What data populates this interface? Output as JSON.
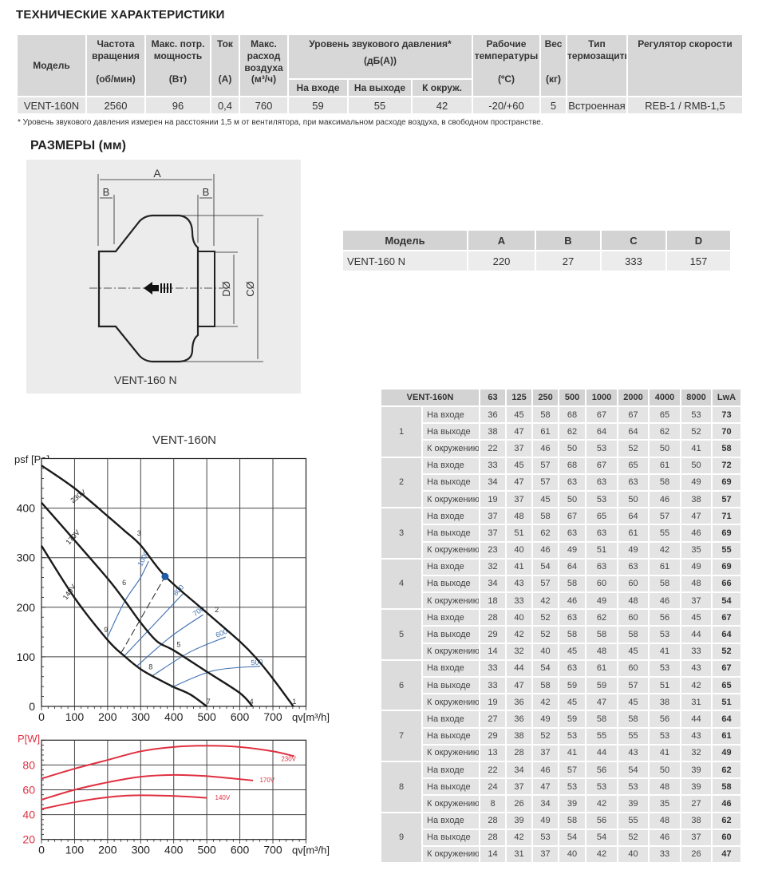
{
  "spec": {
    "title": "ТЕХНИЧЕСКИЕ ХАРАКТЕРИСТИКИ",
    "headers": {
      "model": "Модель",
      "speed": "Частота вращения",
      "speed_unit": "(об/мин)",
      "power": "Макс. потр. мощность",
      "power_unit": "(Вт)",
      "current": "Ток",
      "current_unit": "(А)",
      "flow": "Макс. расход воздуха",
      "flow_unit": "(м³/ч)",
      "sound": "Уровень звукового давления*",
      "sound_unit": "(дБ(А))",
      "sound_in": "На входе",
      "sound_out": "На выходе",
      "sound_env": "К окруж.",
      "temp": "Рабочие температуры",
      "temp_unit": "(ºC)",
      "weight": "Вес",
      "weight_unit": "(кг)",
      "protection": "Тип термозащиты",
      "regulator": "Регулятор скорости"
    },
    "row": [
      "VENT-160N",
      "2560",
      "96",
      "0,4",
      "760",
      "59",
      "55",
      "42",
      "-20/+60",
      "5",
      "Встроенная",
      "REB-1 / RMB-1,5"
    ],
    "footnote": "* Уровень звукового давления измерен на расстоянии 1,5 м от вентилятора, при максимальном расходе воздуха, в свободном пространстве."
  },
  "dimensions": {
    "title": "РАЗМЕРЫ (мм)",
    "drawing_labels": {
      "a": "A",
      "b": "B",
      "c": "CØ",
      "d": "DØ",
      "caption": "VENT-160 N"
    },
    "headers": [
      "Модель",
      "A",
      "B",
      "C",
      "D"
    ],
    "row": [
      "VENT-160 N",
      "220",
      "27",
      "333",
      "157"
    ]
  },
  "noise": {
    "headers": [
      "VENT-160N",
      "63",
      "125",
      "250",
      "500",
      "1000",
      "2000",
      "4000",
      "8000",
      "LwA"
    ],
    "row_labels": [
      "На входе",
      "На выходе",
      "К окружению"
    ],
    "groups": [
      {
        "point": "1",
        "rows": [
          [
            36,
            45,
            58,
            68,
            67,
            67,
            65,
            53,
            73
          ],
          [
            38,
            47,
            61,
            62,
            64,
            64,
            62,
            52,
            70
          ],
          [
            22,
            37,
            46,
            50,
            53,
            52,
            50,
            41,
            58
          ]
        ]
      },
      {
        "point": "2",
        "rows": [
          [
            33,
            45,
            57,
            68,
            67,
            65,
            61,
            50,
            72
          ],
          [
            34,
            47,
            57,
            63,
            63,
            63,
            58,
            49,
            69
          ],
          [
            19,
            37,
            45,
            50,
            53,
            50,
            46,
            38,
            57
          ]
        ]
      },
      {
        "point": "3",
        "rows": [
          [
            37,
            48,
            58,
            67,
            65,
            64,
            57,
            47,
            71
          ],
          [
            37,
            51,
            62,
            63,
            63,
            61,
            55,
            46,
            69
          ],
          [
            23,
            40,
            46,
            49,
            51,
            49,
            42,
            35,
            55
          ]
        ]
      },
      {
        "point": "4",
        "rows": [
          [
            32,
            41,
            54,
            64,
            63,
            63,
            61,
            49,
            69
          ],
          [
            34,
            43,
            57,
            58,
            60,
            60,
            58,
            48,
            66
          ],
          [
            18,
            33,
            42,
            46,
            49,
            48,
            46,
            37,
            54
          ]
        ]
      },
      {
        "point": "5",
        "rows": [
          [
            28,
            40,
            52,
            63,
            62,
            60,
            56,
            45,
            67
          ],
          [
            29,
            42,
            52,
            58,
            58,
            58,
            53,
            44,
            64
          ],
          [
            14,
            32,
            40,
            45,
            48,
            45,
            41,
            33,
            52
          ]
        ]
      },
      {
        "point": "6",
        "rows": [
          [
            33,
            44,
            54,
            63,
            61,
            60,
            53,
            43,
            67
          ],
          [
            33,
            47,
            58,
            59,
            59,
            57,
            51,
            42,
            65
          ],
          [
            19,
            36,
            42,
            45,
            47,
            45,
            38,
            31,
            51
          ]
        ]
      },
      {
        "point": "7",
        "rows": [
          [
            27,
            36,
            49,
            59,
            58,
            58,
            56,
            44,
            64
          ],
          [
            29,
            38,
            52,
            53,
            55,
            55,
            53,
            43,
            61
          ],
          [
            13,
            28,
            37,
            41,
            44,
            43,
            41,
            32,
            49
          ]
        ]
      },
      {
        "point": "8",
        "rows": [
          [
            22,
            34,
            46,
            57,
            56,
            54,
            50,
            39,
            62
          ],
          [
            24,
            37,
            47,
            53,
            53,
            53,
            48,
            39,
            58
          ],
          [
            8,
            26,
            34,
            39,
            42,
            39,
            35,
            27,
            46
          ]
        ]
      },
      {
        "point": "9",
        "rows": [
          [
            28,
            39,
            49,
            58,
            56,
            55,
            48,
            38,
            62
          ],
          [
            28,
            42,
            53,
            54,
            54,
            52,
            46,
            37,
            60
          ],
          [
            14,
            31,
            37,
            40,
            42,
            40,
            33,
            26,
            47
          ]
        ]
      }
    ]
  },
  "chart_data": [
    {
      "type": "line",
      "title": "VENT-160N",
      "xlabel": "qv[m³/h]",
      "ylabel": "psf [Pa]",
      "xlim": [
        0,
        800
      ],
      "ylim": [
        0,
        500
      ],
      "xticks": [
        0,
        100,
        200,
        300,
        400,
        500,
        600,
        700
      ],
      "yticks": [
        0,
        100,
        200,
        300,
        400
      ],
      "grid": true,
      "colors": {
        "curve": "#1a1a1a",
        "iso": "#3d6fb0",
        "point": "#1f5aa8"
      },
      "series": [
        {
          "name": "230V",
          "x": [
            0,
            100,
            200,
            250,
            300,
            375,
            500,
            600,
            650,
            700,
            762
          ],
          "y": [
            486,
            440,
            384,
            355,
            325,
            262,
            189,
            131,
            97,
            56,
            0
          ]
        },
        {
          "name": "170V",
          "x": [
            0,
            100,
            200,
            250,
            300,
            350,
            400,
            500,
            600,
            638
          ],
          "y": [
            411,
            335,
            258,
            215,
            169,
            131,
            113,
            70,
            27,
            0
          ]
        },
        {
          "name": "140V",
          "x": [
            0,
            100,
            200,
            250,
            300,
            350,
            400,
            450,
            500
          ],
          "y": [
            324,
            219,
            134,
            102,
            75,
            56,
            39,
            24,
            0
          ]
        }
      ],
      "iso_lines": [
        {
          "name": "1000",
          "x": [
            198,
            250,
            298,
            324
          ],
          "y": [
            137,
            210,
            258,
            293
          ]
        },
        {
          "name": "800",
          "x": [
            248,
            340,
            429
          ],
          "y": [
            100,
            165,
            228
          ]
        },
        {
          "name": "700",
          "x": [
            288,
            390,
            489
          ],
          "y": [
            81,
            140,
            185
          ]
        },
        {
          "name": "600",
          "x": [
            336,
            450,
            557
          ],
          "y": [
            62,
            110,
            140
          ]
        },
        {
          "name": "500",
          "x": [
            392,
            520,
            662
          ],
          "y": [
            38,
            72,
            81
          ]
        }
      ],
      "dashed_line": {
        "x": [
          240,
          372
        ],
        "y": [
          107,
          260
        ]
      },
      "operating_point": {
        "x": 374,
        "y": 262
      },
      "point_labels": [
        {
          "label": "1",
          "x": 765,
          "y": 5
        },
        {
          "label": "2",
          "x": 530,
          "y": 190
        },
        {
          "label": "3",
          "x": 295,
          "y": 345
        },
        {
          "label": "4",
          "x": 635,
          "y": 5
        },
        {
          "label": "5",
          "x": 415,
          "y": 120
        },
        {
          "label": "6",
          "x": 250,
          "y": 245
        },
        {
          "label": "7",
          "x": 505,
          "y": 5
        },
        {
          "label": "8",
          "x": 330,
          "y": 75
        },
        {
          "label": "9",
          "x": 195,
          "y": 150
        }
      ]
    },
    {
      "type": "line",
      "xlabel": "qv[m³/h]",
      "ylabel": "P[W]",
      "xlim": [
        0,
        800
      ],
      "ylim": [
        20,
        100
      ],
      "xticks": [
        0,
        100,
        200,
        300,
        400,
        500,
        600,
        700
      ],
      "yticks": [
        20,
        40,
        60,
        80
      ],
      "grid": true,
      "colors": {
        "curve": "#e03040",
        "axis_label": "#e03040"
      },
      "series": [
        {
          "name": "230V",
          "x": [
            0,
            100,
            200,
            300,
            400,
            500,
            600,
            700,
            765
          ],
          "y": [
            69,
            77,
            84,
            91,
            94.5,
            95.5,
            94.5,
            91,
            87
          ]
        },
        {
          "name": "170V",
          "x": [
            0,
            100,
            200,
            300,
            400,
            500,
            640
          ],
          "y": [
            52,
            60,
            66,
            70.5,
            72,
            71,
            67.5
          ]
        },
        {
          "name": "140V",
          "x": [
            0,
            100,
            200,
            280,
            400,
            500
          ],
          "y": [
            44.5,
            50,
            54,
            55.5,
            55,
            53.5
          ]
        }
      ]
    }
  ]
}
